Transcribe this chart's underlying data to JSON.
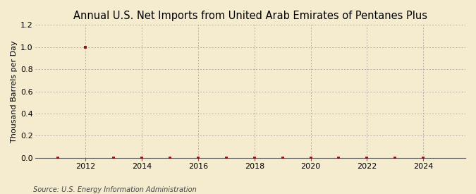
{
  "title": "Annual U.S. Net Imports from United Arab Emirates of Pentanes Plus",
  "ylabel": "Thousand Barrels per Day",
  "source": "Source: U.S. Energy Information Administration",
  "background_color": "#f5eccf",
  "years": [
    2011,
    2012,
    2013,
    2014,
    2015,
    2016,
    2017,
    2018,
    2019,
    2020,
    2021,
    2022,
    2023,
    2024
  ],
  "values": [
    0,
    1.0,
    0,
    0,
    0,
    0,
    0,
    0,
    0,
    0,
    0,
    0,
    0,
    0
  ],
  "marker_color": "#8b1a1a",
  "xlim": [
    2010.2,
    2025.5
  ],
  "ylim": [
    0,
    1.2
  ],
  "yticks": [
    0.0,
    0.2,
    0.4,
    0.6,
    0.8,
    1.0,
    1.2
  ],
  "xticks": [
    2012,
    2014,
    2016,
    2018,
    2020,
    2022,
    2024
  ],
  "grid_color": "#999999",
  "title_fontsize": 10.5,
  "axis_fontsize": 8,
  "tick_fontsize": 8,
  "source_fontsize": 7
}
